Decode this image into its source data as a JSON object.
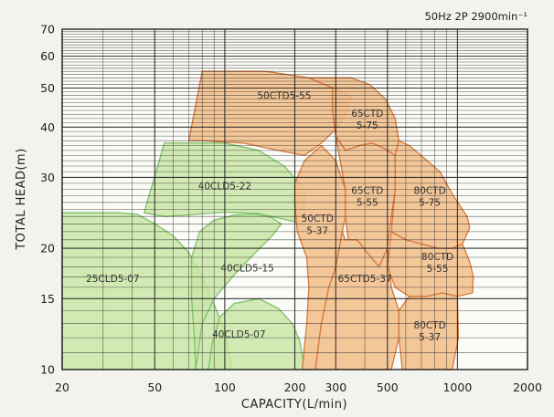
{
  "chart_data": {
    "type": "area",
    "condition": "50Hz 2P 2900min⁻¹",
    "xlabel": "CAPACITY(L/min)",
    "ylabel": "TOTAL HEAD(m)",
    "x_scale": "log",
    "y_scale": "log",
    "xlim": [
      20,
      2000
    ],
    "ylim": [
      10,
      70
    ],
    "x_ticks": [
      20,
      50,
      100,
      200,
      300,
      500,
      1000,
      2000
    ],
    "y_ticks": [
      10,
      15,
      20,
      30,
      40,
      50,
      60,
      70
    ],
    "grid": true,
    "colors": {
      "green_region": "#c9e5a6",
      "orange_region": "#f2bf8c",
      "green_edge": "#7ec26a",
      "orange_edge": "#d8783a",
      "grid": "#222222"
    },
    "regions": [
      {
        "name": "25CLD5-07",
        "group": "green",
        "label_at": [
          33,
          16.5
        ],
        "outline": [
          [
            20,
            10
          ],
          [
            20,
            24.5
          ],
          [
            35,
            24.5
          ],
          [
            42,
            24.3
          ],
          [
            50,
            23
          ],
          [
            60,
            21.5
          ],
          [
            70,
            19.5
          ],
          [
            80,
            17
          ],
          [
            90,
            14.5
          ],
          [
            100,
            12.5
          ],
          [
            108,
            10
          ]
        ]
      },
      {
        "name": "40CLD5-15",
        "group": "green",
        "label_at": [
          125,
          17.5
        ],
        "outline": [
          [
            75,
            10
          ],
          [
            80,
            13
          ],
          [
            90,
            15
          ],
          [
            110,
            17.2
          ],
          [
            135,
            19.5
          ],
          [
            160,
            21.5
          ],
          [
            175,
            23
          ],
          [
            160,
            23.8
          ],
          [
            135,
            24.3
          ],
          [
            110,
            24.2
          ],
          [
            90,
            23.5
          ],
          [
            78,
            22
          ],
          [
            72,
            19
          ],
          [
            72,
            15
          ],
          [
            74,
            12
          ]
        ]
      },
      {
        "name": "40CLD5-07",
        "group": "green",
        "label_at": [
          115,
          12
        ],
        "outline": [
          [
            85,
            10
          ],
          [
            88,
            11.5
          ],
          [
            95,
            13.5
          ],
          [
            110,
            14.6
          ],
          [
            140,
            15
          ],
          [
            170,
            14.2
          ],
          [
            195,
            13
          ],
          [
            210,
            11.8
          ],
          [
            220,
            10
          ]
        ]
      },
      {
        "name": "40CLD5-22",
        "group": "green",
        "label_at": [
          100,
          28
        ],
        "outline": [
          [
            45,
            24.5
          ],
          [
            55,
            36.5
          ],
          [
            100,
            36.5
          ],
          [
            140,
            35
          ],
          [
            180,
            32
          ],
          [
            220,
            28
          ],
          [
            220,
            23
          ],
          [
            180,
            23.6
          ],
          [
            140,
            24.4
          ],
          [
            100,
            24.6
          ],
          [
            70,
            24.2
          ],
          [
            55,
            24
          ]
        ]
      },
      {
        "name": "50CTD5-55",
        "group": "orange",
        "label_at": [
          180,
          47
        ],
        "outline": [
          [
            70,
            37
          ],
          [
            80,
            55
          ],
          [
            150,
            55
          ],
          [
            230,
            53
          ],
          [
            300,
            50
          ],
          [
            350,
            47.5
          ],
          [
            330,
            43
          ],
          [
            300,
            39.5
          ],
          [
            260,
            36.5
          ],
          [
            220,
            34
          ],
          [
            170,
            35
          ],
          [
            120,
            36.5
          ],
          [
            80,
            37
          ]
        ]
      },
      {
        "name": "65CTD 5-75",
        "group": "orange",
        "label_at": [
          410,
          42
        ],
        "outline": [
          [
            230,
            53
          ],
          [
            350,
            53
          ],
          [
            420,
            51
          ],
          [
            490,
            47
          ],
          [
            540,
            42
          ],
          [
            560,
            37
          ],
          [
            540,
            34
          ],
          [
            480,
            35.5
          ],
          [
            430,
            36.5
          ],
          [
            380,
            36
          ],
          [
            330,
            35
          ],
          [
            300,
            38
          ],
          [
            290,
            44
          ],
          [
            290,
            50
          ]
        ]
      },
      {
        "name": "50CTD 5-37",
        "group": "orange",
        "label_at": [
          250,
          23
        ],
        "outline": [
          [
            200,
            29
          ],
          [
            220,
            33
          ],
          [
            260,
            36
          ],
          [
            300,
            33
          ],
          [
            330,
            28
          ],
          [
            330,
            24
          ],
          [
            320,
            22
          ],
          [
            300,
            18
          ],
          [
            280,
            16
          ],
          [
            260,
            13
          ],
          [
            245,
            10
          ],
          [
            215,
            10
          ],
          [
            225,
            13
          ],
          [
            230,
            16
          ],
          [
            225,
            19
          ],
          [
            205,
            22
          ],
          [
            200,
            26
          ]
        ]
      },
      {
        "name": "65CTD 5-55",
        "group": "orange",
        "label_at": [
          410,
          27
        ],
        "outline": [
          [
            300,
            38
          ],
          [
            330,
            35
          ],
          [
            380,
            36
          ],
          [
            430,
            36.5
          ],
          [
            480,
            35.5
          ],
          [
            540,
            34
          ],
          [
            540,
            28
          ],
          [
            520,
            24
          ],
          [
            500,
            20
          ],
          [
            460,
            18
          ],
          [
            410,
            19.5
          ],
          [
            370,
            21
          ],
          [
            340,
            21
          ],
          [
            330,
            24
          ],
          [
            330,
            28
          ]
        ]
      },
      {
        "name": "65CTD5-37",
        "group": "orange",
        "label_at": [
          400,
          16.5
        ],
        "outline": [
          [
            245,
            10
          ],
          [
            260,
            13
          ],
          [
            280,
            16
          ],
          [
            300,
            18
          ],
          [
            320,
            22
          ],
          [
            330,
            21
          ],
          [
            370,
            21
          ],
          [
            410,
            19.5
          ],
          [
            460,
            18
          ],
          [
            500,
            20
          ],
          [
            520,
            16
          ],
          [
            560,
            14
          ],
          [
            560,
            12
          ],
          [
            520,
            10
          ]
        ]
      },
      {
        "name": "80CTD 5-75",
        "group": "orange",
        "label_at": [
          760,
          27
        ],
        "outline": [
          [
            540,
            34
          ],
          [
            560,
            37
          ],
          [
            620,
            36
          ],
          [
            720,
            33.5
          ],
          [
            840,
            31
          ],
          [
            960,
            27
          ],
          [
            1100,
            24
          ],
          [
            1130,
            22.5
          ],
          [
            1050,
            20.5
          ],
          [
            950,
            20
          ],
          [
            820,
            20
          ],
          [
            700,
            20.5
          ],
          [
            600,
            21
          ],
          [
            520,
            22
          ],
          [
            540,
            28
          ]
        ]
      },
      {
        "name": "80CTD 5-55",
        "group": "orange",
        "label_at": [
          820,
          18.5
        ],
        "outline": [
          [
            520,
            22
          ],
          [
            600,
            21
          ],
          [
            700,
            20.5
          ],
          [
            820,
            20
          ],
          [
            950,
            20
          ],
          [
            1050,
            20.5
          ],
          [
            1130,
            18.5
          ],
          [
            1170,
            17
          ],
          [
            1160,
            15.5
          ],
          [
            1000,
            15.2
          ],
          [
            860,
            15.5
          ],
          [
            740,
            15.2
          ],
          [
            620,
            15.2
          ],
          [
            540,
            16
          ],
          [
            500,
            18
          ]
        ]
      },
      {
        "name": "80CTD 5-37",
        "group": "orange",
        "label_at": [
          760,
          12.5
        ],
        "outline": [
          [
            560,
            12
          ],
          [
            560,
            14
          ],
          [
            620,
            15.2
          ],
          [
            740,
            15.2
          ],
          [
            860,
            15.5
          ],
          [
            1000,
            15.2
          ],
          [
            1010,
            12
          ],
          [
            950,
            10
          ],
          [
            580,
            10
          ]
        ]
      }
    ]
  }
}
